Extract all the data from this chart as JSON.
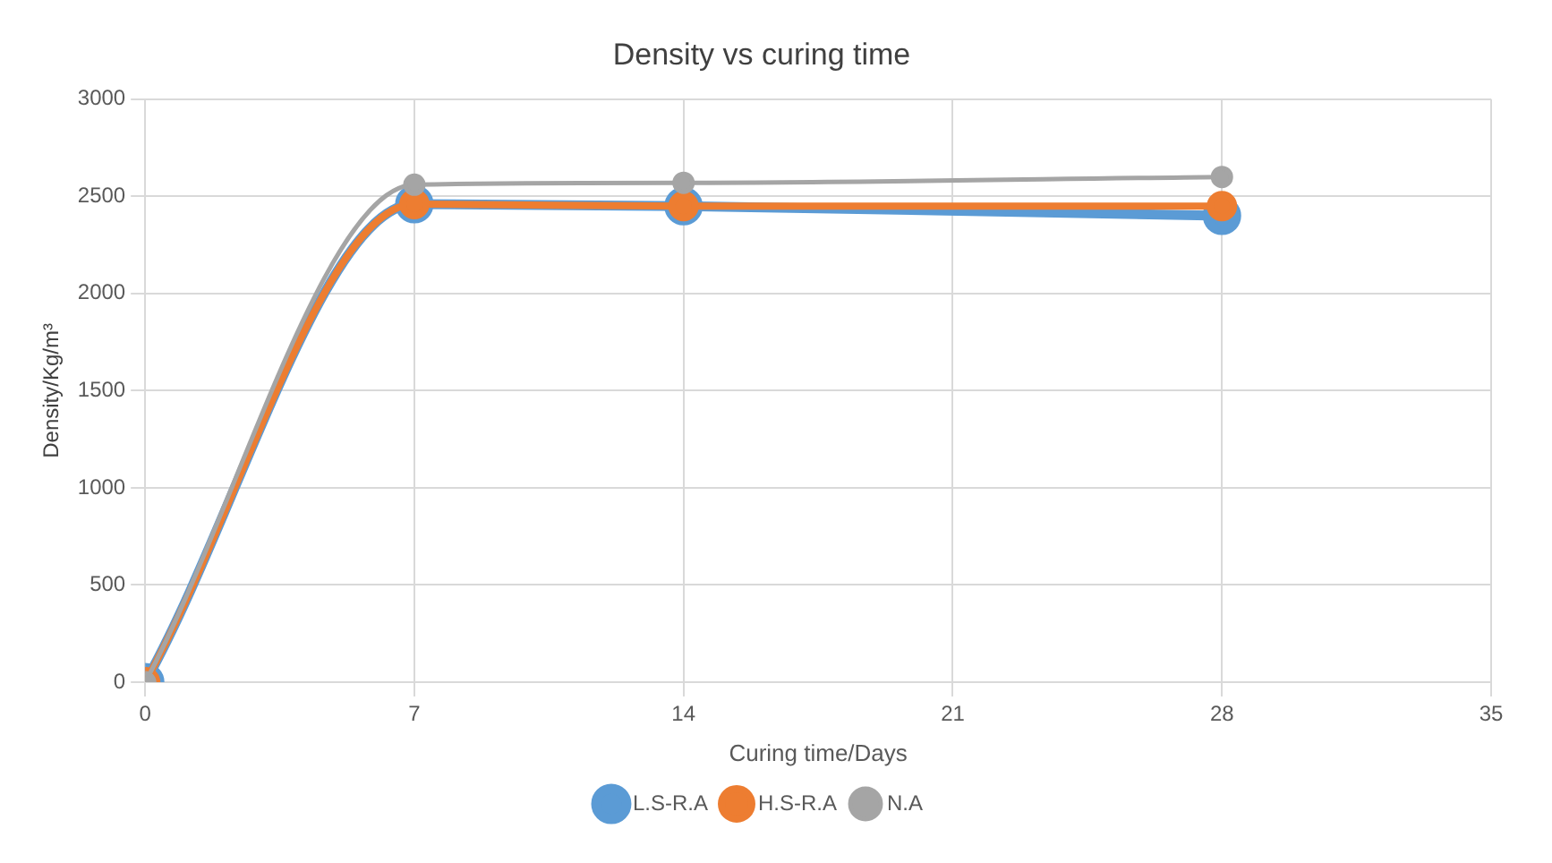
{
  "chart_data": {
    "type": "line",
    "title": "Density vs curing time",
    "xlabel": "Curing time/Days",
    "ylabel": "Density/Kg/m³",
    "x": [
      0,
      7,
      14,
      28
    ],
    "series": [
      {
        "name": "L.S-R.A",
        "color": "#5b9bd5",
        "values": [
          0,
          2460,
          2450,
          2400
        ]
      },
      {
        "name": "H.S-R.A",
        "color": "#ed7d31",
        "values": [
          0,
          2460,
          2450,
          2450
        ]
      },
      {
        "name": "N.A",
        "color": "#a5a5a5",
        "values": [
          0,
          2560,
          2570,
          2600
        ]
      }
    ],
    "xlim": [
      0,
      35
    ],
    "xticks": [
      0,
      7,
      14,
      21,
      28,
      35
    ],
    "ylim": [
      0,
      3000
    ],
    "yticks": [
      0,
      500,
      1000,
      1500,
      2000,
      2500,
      3000
    ],
    "grid": true,
    "legend": "bottom",
    "marker": "circle",
    "line_style": "solid"
  }
}
